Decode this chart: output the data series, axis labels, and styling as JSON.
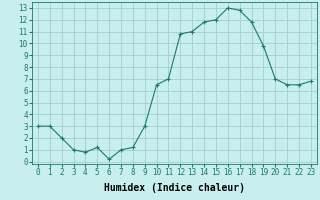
{
  "x": [
    0,
    1,
    2,
    3,
    4,
    5,
    6,
    7,
    8,
    9,
    10,
    11,
    12,
    13,
    14,
    15,
    16,
    17,
    18,
    19,
    20,
    21,
    22,
    23
  ],
  "y": [
    3.0,
    3.0,
    2.0,
    1.0,
    0.8,
    1.2,
    0.2,
    1.0,
    1.2,
    3.0,
    6.5,
    7.0,
    10.8,
    11.0,
    11.8,
    12.0,
    13.0,
    12.8,
    11.8,
    9.8,
    7.0,
    6.5,
    6.5,
    6.8
  ],
  "line_color": "#1a7a6e",
  "marker": "+",
  "marker_size": 3,
  "bg_color": "#c8eeee",
  "grid_color": "#a0d0d0",
  "xlabel": "Humidex (Indice chaleur)",
  "xlabel_fontsize": 7,
  "xlabel_weight": "bold",
  "xtick_labels": [
    "0",
    "1",
    "2",
    "3",
    "4",
    "5",
    "6",
    "7",
    "8",
    "9",
    "10",
    "11",
    "12",
    "13",
    "14",
    "15",
    "16",
    "17",
    "18",
    "19",
    "20",
    "21",
    "22",
    "23"
  ],
  "ytick_labels": [
    "0",
    "1",
    "2",
    "3",
    "4",
    "5",
    "6",
    "7",
    "8",
    "9",
    "10",
    "11",
    "12",
    "13"
  ],
  "xlim": [
    -0.5,
    23.5
  ],
  "ylim": [
    -0.2,
    13.5
  ],
  "tick_fontsize": 5.5
}
